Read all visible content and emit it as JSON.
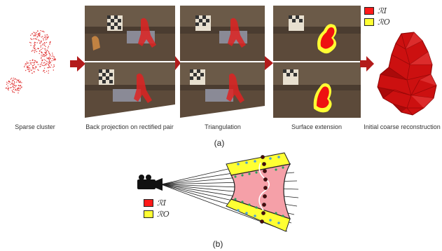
{
  "panel_a": {
    "stages": [
      {
        "caption": "Sparse cluster"
      },
      {
        "caption": "Back projection on rectified pair"
      },
      {
        "caption": "Triangulation"
      },
      {
        "caption": "Surface extension"
      },
      {
        "caption": "Initial coarse reconstruction"
      }
    ],
    "legend": [
      {
        "symbol": "ℛI",
        "color": "#ff1a1a"
      },
      {
        "symbol": "ℛO",
        "color": "#ffff33"
      }
    ],
    "label": "(a)"
  },
  "panel_b": {
    "legend": [
      {
        "symbol": "ℛI",
        "color": "#ff1a1a"
      },
      {
        "symbol": "ℛO",
        "color": "#ffff33"
      }
    ],
    "label": "(b)"
  },
  "colors": {
    "arrow": "#b31b1b",
    "points": "#e03030",
    "surface": "#cc1010",
    "inner_region": "#f5a0a8",
    "ray_dot": "#4a9fd8",
    "boundary_dot": "#2aa05a"
  }
}
